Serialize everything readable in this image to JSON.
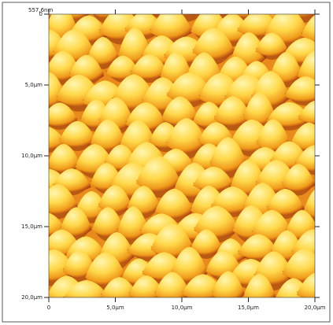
{
  "image": {
    "height_label": "557,6nm",
    "y_axis": [
      "0",
      "5,0µm",
      "10,0µm",
      "15,0µm",
      "20,0µm"
    ],
    "x_axis": [
      "0",
      "5,0µm",
      "10,0µm",
      "15,0µm",
      "20,0µm"
    ]
  }
}
